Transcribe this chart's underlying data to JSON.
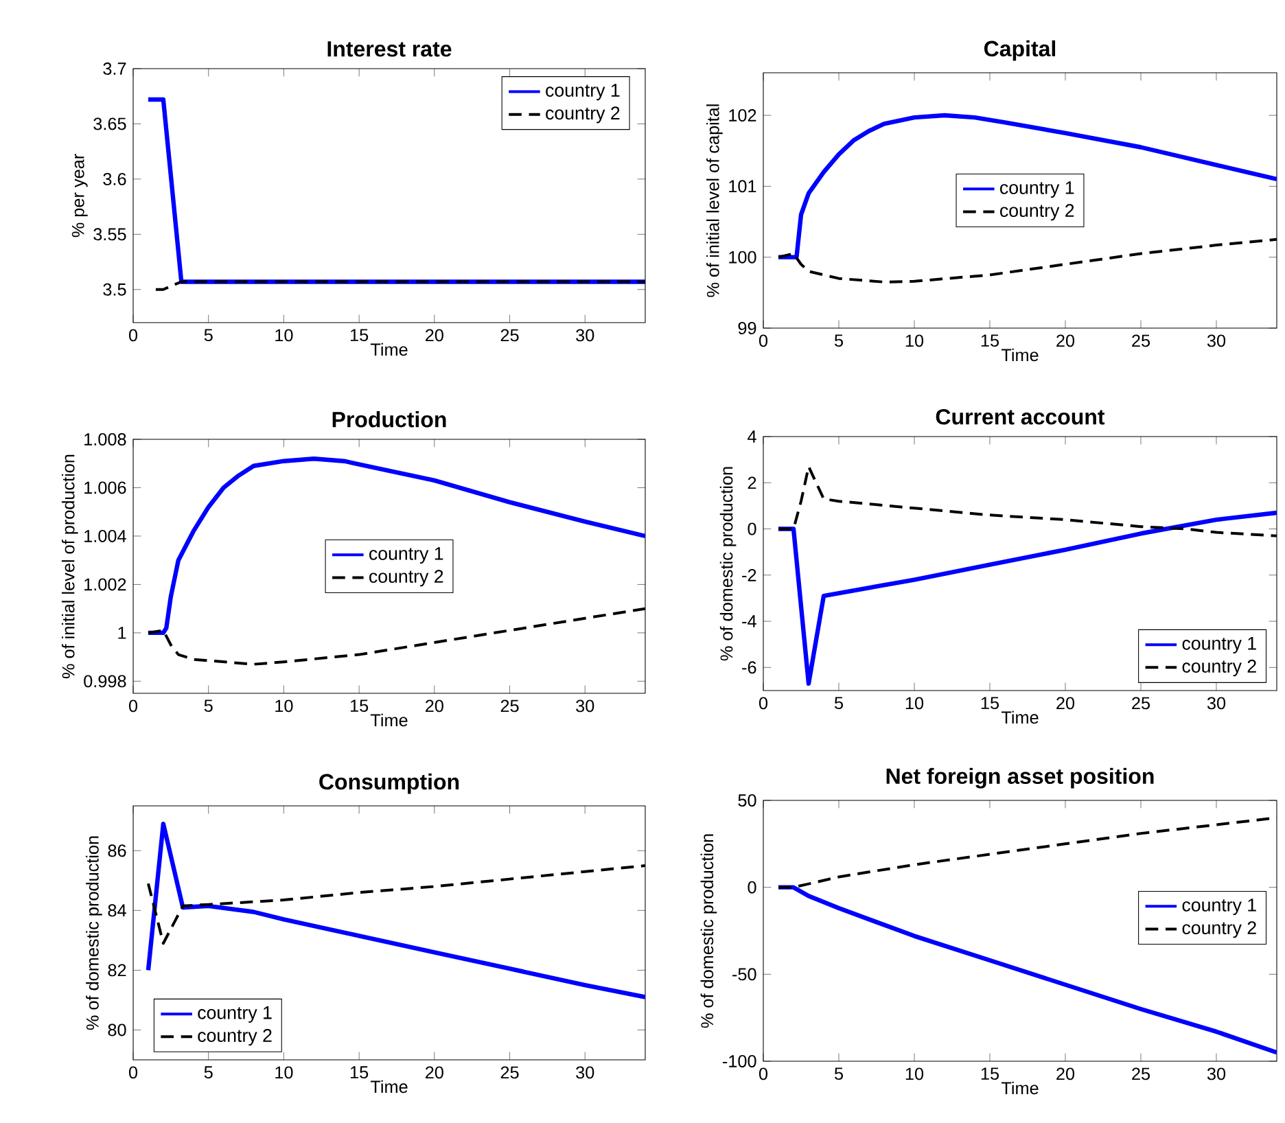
{
  "chart_data": [
    {
      "type": "line",
      "title": "Interest rate",
      "xlabel": "Time",
      "ylabel": "% per year",
      "xlim": [
        0,
        34
      ],
      "xticks": [
        0,
        5,
        10,
        15,
        20,
        25,
        30
      ],
      "ylim": [
        3.47,
        3.7
      ],
      "yticks": [
        3.5,
        3.55,
        3.6,
        3.65,
        3.7
      ],
      "legend": "top right",
      "grid": false,
      "series": [
        {
          "name": "country 1",
          "color": "#0000ff",
          "line_style": "solid",
          "x": [
            1,
            2,
            3.2,
            34
          ],
          "values": [
            3.672,
            3.672,
            3.507,
            3.507
          ]
        },
        {
          "name": "country 2",
          "color": "#000000",
          "line_style": "dashed",
          "x": [
            1.5,
            2,
            2.5,
            3.2,
            34
          ],
          "values": [
            3.5,
            3.5,
            3.503,
            3.507,
            3.507
          ]
        }
      ]
    },
    {
      "type": "line",
      "title": "Capital",
      "xlabel": "Time",
      "ylabel": "% of initial level of capital",
      "xlim": [
        0,
        34
      ],
      "xticks": [
        0,
        5,
        10,
        15,
        20,
        25,
        30
      ],
      "ylim": [
        99,
        102.6
      ],
      "yticks": [
        99,
        100,
        101,
        102
      ],
      "legend": "center",
      "grid": false,
      "series": [
        {
          "name": "country 1",
          "color": "#0000ff",
          "line_style": "solid",
          "x": [
            1,
            2.2,
            2.5,
            3,
            4,
            5,
            6,
            7,
            8,
            10,
            12,
            14,
            16,
            20,
            25,
            30,
            34
          ],
          "values": [
            100,
            100,
            100.6,
            100.9,
            101.2,
            101.45,
            101.65,
            101.78,
            101.88,
            101.97,
            102.0,
            101.97,
            101.9,
            101.75,
            101.55,
            101.3,
            101.1
          ]
        },
        {
          "name": "country 2",
          "color": "#000000",
          "line_style": "dashed",
          "x": [
            1,
            2,
            2.5,
            3,
            5,
            8,
            10,
            15,
            20,
            25,
            30,
            34
          ],
          "values": [
            100,
            100.05,
            99.9,
            99.8,
            99.7,
            99.65,
            99.66,
            99.75,
            99.9,
            100.05,
            100.17,
            100.25
          ]
        }
      ]
    },
    {
      "type": "line",
      "title": "Production",
      "xlabel": "Time",
      "ylabel": "% of initial level of production",
      "xlim": [
        0,
        34
      ],
      "xticks": [
        0,
        5,
        10,
        15,
        20,
        25,
        30
      ],
      "ylim": [
        0.9975,
        1.008
      ],
      "yticks": [
        0.998,
        1,
        1.002,
        1.004,
        1.006,
        1.008
      ],
      "legend": "center",
      "grid": false,
      "series": [
        {
          "name": "country 1",
          "color": "#0000ff",
          "line_style": "solid",
          "x": [
            1,
            2,
            2.2,
            2.5,
            3,
            4,
            5,
            6,
            7,
            8,
            10,
            12,
            14,
            17,
            20,
            25,
            30,
            34
          ],
          "values": [
            1,
            1,
            1.0002,
            1.0015,
            1.003,
            1.0042,
            1.0052,
            1.006,
            1.0065,
            1.0069,
            1.0071,
            1.0072,
            1.0071,
            1.0067,
            1.0063,
            1.0054,
            1.0046,
            1.004
          ]
        },
        {
          "name": "country 2",
          "color": "#000000",
          "line_style": "dashed",
          "x": [
            1,
            2,
            2.5,
            3,
            4,
            6,
            8,
            10,
            15,
            20,
            25,
            30,
            34
          ],
          "values": [
            1,
            1.0001,
            0.9995,
            0.9991,
            0.9989,
            0.9988,
            0.9987,
            0.9988,
            0.9991,
            0.9996,
            1.0001,
            1.0006,
            1.001
          ]
        }
      ]
    },
    {
      "type": "line",
      "title": "Current account",
      "xlabel": "Time",
      "ylabel": "% of domestic production",
      "xlim": [
        0,
        34
      ],
      "xticks": [
        0,
        5,
        10,
        15,
        20,
        25,
        30
      ],
      "ylim": [
        -7,
        4
      ],
      "yticks": [
        -6,
        -4,
        -2,
        0,
        2,
        4
      ],
      "legend": "bottom right",
      "grid": false,
      "series": [
        {
          "name": "country 1",
          "color": "#0000ff",
          "line_style": "solid",
          "x": [
            1,
            2,
            3,
            4,
            10,
            15,
            20,
            25,
            30,
            34
          ],
          "values": [
            0,
            0,
            -6.7,
            -2.9,
            -2.2,
            -1.55,
            -0.9,
            -0.2,
            0.4,
            0.7
          ]
        },
        {
          "name": "country 2",
          "color": "#000000",
          "line_style": "dashed",
          "x": [
            1,
            2,
            2.5,
            3,
            3.5,
            4,
            5,
            10,
            15,
            20,
            25,
            28,
            30,
            34
          ],
          "values": [
            0,
            0,
            1.2,
            2.7,
            2,
            1.3,
            1.2,
            0.9,
            0.6,
            0.4,
            0.1,
            0,
            -0.15,
            -0.3
          ]
        }
      ]
    },
    {
      "type": "line",
      "title": "Consumption",
      "xlabel": "Time",
      "ylabel": "% of domestic production",
      "xlim": [
        0,
        34
      ],
      "xticks": [
        0,
        5,
        10,
        15,
        20,
        25,
        30
      ],
      "ylim": [
        79,
        87.5
      ],
      "yticks": [
        80,
        82,
        84,
        86
      ],
      "legend": "bottom left",
      "grid": false,
      "series": [
        {
          "name": "country 1",
          "color": "#0000ff",
          "line_style": "solid",
          "x": [
            1,
            2,
            3.3,
            5,
            8,
            10,
            15,
            20,
            25,
            30,
            34
          ],
          "values": [
            82,
            86.9,
            84.1,
            84.15,
            83.95,
            83.7,
            83.15,
            82.6,
            82.05,
            81.5,
            81.1
          ]
        },
        {
          "name": "country 2",
          "color": "#000000",
          "line_style": "dashed",
          "x": [
            1,
            2,
            3.3,
            5,
            10,
            15,
            20,
            25,
            30,
            34
          ],
          "values": [
            84.9,
            82.9,
            84.15,
            84.2,
            84.35,
            84.6,
            84.8,
            85.05,
            85.3,
            85.5
          ]
        }
      ]
    },
    {
      "type": "line",
      "title": "Net foreign asset position",
      "xlabel": "Time",
      "ylabel": "% of domestic production",
      "xlim": [
        0,
        34
      ],
      "xticks": [
        0,
        5,
        10,
        15,
        20,
        25,
        30
      ],
      "ylim": [
        -100,
        50
      ],
      "yticks": [
        -100,
        -50,
        0,
        50
      ],
      "legend": "right",
      "grid": false,
      "series": [
        {
          "name": "country 1",
          "color": "#0000ff",
          "line_style": "solid",
          "x": [
            1,
            2,
            3,
            5,
            10,
            15,
            20,
            25,
            30,
            34
          ],
          "values": [
            0,
            0,
            -5,
            -12,
            -28,
            -42,
            -56,
            -70,
            -83,
            -95
          ]
        },
        {
          "name": "country 2",
          "color": "#000000",
          "line_style": "dashed",
          "x": [
            1,
            2,
            3,
            5,
            10,
            15,
            20,
            25,
            30,
            34
          ],
          "values": [
            0,
            0,
            2,
            6,
            13,
            19,
            25,
            31,
            36,
            40
          ]
        }
      ]
    }
  ]
}
